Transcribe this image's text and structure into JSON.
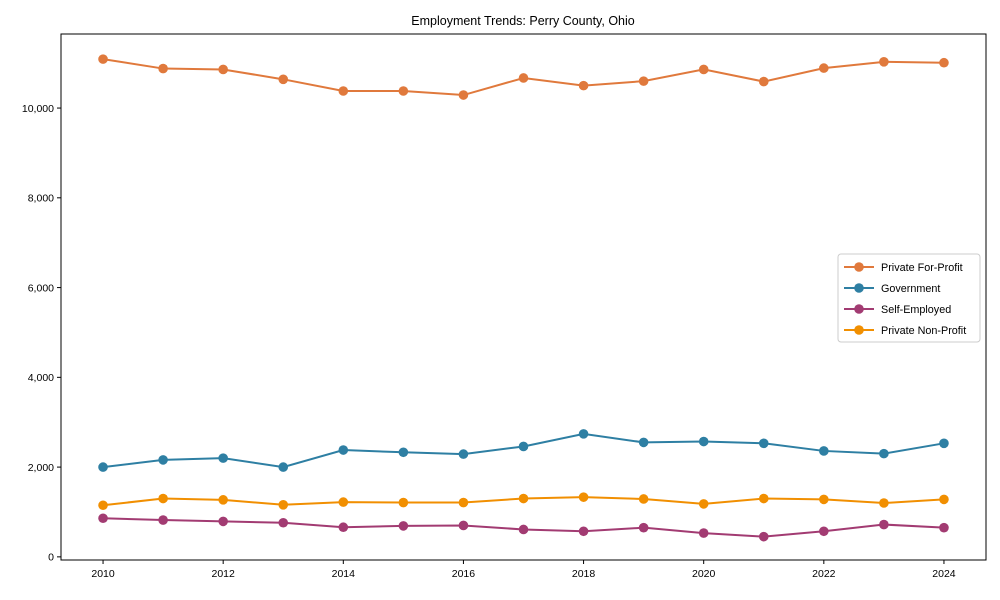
{
  "figure": {
    "background": "#ffffff",
    "axis_color": "#000000",
    "legend_border_color": "#cccccc",
    "legend_background": "#ffffff"
  },
  "chart_data": {
    "type": "line",
    "title": "Employment Trends: Perry County, Ohio",
    "xlabel": "",
    "ylabel": "",
    "x": [
      2010,
      2011,
      2012,
      2013,
      2014,
      2015,
      2016,
      2017,
      2018,
      2019,
      2020,
      2021,
      2022,
      2023,
      2024
    ],
    "xtick_labels": [
      "2010",
      "2012",
      "2014",
      "2016",
      "2018",
      "2020",
      "2022",
      "2024"
    ],
    "ytick_values": [
      0,
      2000,
      4000,
      6000,
      8000,
      10000
    ],
    "ytick_labels": [
      "0",
      "2,000",
      "4,000",
      "6,000",
      "8,000",
      "10,000"
    ],
    "xlim": [
      2009.3,
      2024.7
    ],
    "ylim": [
      -70,
      11650
    ],
    "grid": false,
    "legend_position": "center-right",
    "marker": "circle",
    "series": [
      {
        "name": "Private For-Profit",
        "color": "#E0793C",
        "values": [
          11090,
          10880,
          10860,
          10640,
          10380,
          10380,
          10290,
          10670,
          10500,
          10600,
          10860,
          10590,
          10890,
          11030,
          11010
        ]
      },
      {
        "name": "Government",
        "color": "#2E7FA3",
        "values": [
          2000,
          2160,
          2200,
          2000,
          2380,
          2330,
          2290,
          2460,
          2740,
          2550,
          2570,
          2530,
          2360,
          2300,
          2530
        ]
      },
      {
        "name": "Self-Employed",
        "color": "#A23B72",
        "values": [
          860,
          820,
          790,
          760,
          660,
          690,
          700,
          610,
          570,
          650,
          530,
          450,
          570,
          720,
          650
        ]
      },
      {
        "name": "Private Non-Profit",
        "color": "#F18F01",
        "values": [
          1150,
          1300,
          1270,
          1160,
          1220,
          1210,
          1210,
          1300,
          1330,
          1290,
          1180,
          1300,
          1280,
          1200,
          1280
        ]
      }
    ]
  }
}
